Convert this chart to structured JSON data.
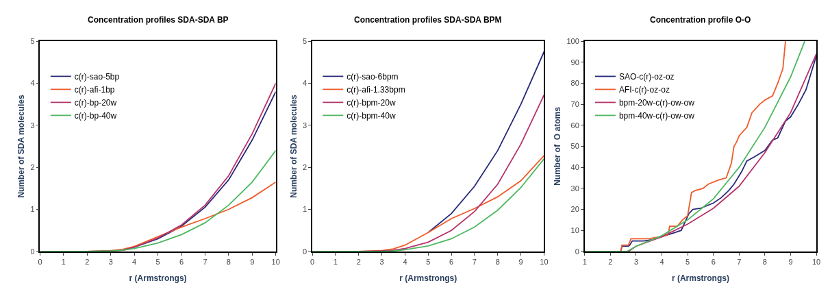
{
  "chart_data": [
    {
      "type": "line",
      "title": "Concentration profiles SDA-SDA BP",
      "xlabel": "r (Armstrongs)",
      "ylabel": "Number of SDA molecules",
      "xlim": [
        0,
        10
      ],
      "xticks": [
        0,
        1,
        2,
        3,
        4,
        5,
        6,
        7,
        8,
        9,
        10
      ],
      "ylim": [
        0,
        5
      ],
      "yticks": [
        0,
        1,
        2,
        3,
        4,
        5
      ],
      "legend": "top left",
      "series": [
        {
          "name": "c(r)-sao-5bp",
          "color": "#28287a",
          "x": [
            3.5,
            4,
            5,
            6,
            7,
            8,
            9,
            10
          ],
          "values": [
            0.03,
            0.1,
            0.3,
            0.6,
            1.05,
            1.7,
            2.65,
            3.8
          ]
        },
        {
          "name": "c(r)-afi-1bp",
          "color": "#f05a28",
          "x": [
            0,
            2,
            3,
            3.5,
            4,
            5,
            6,
            7,
            8,
            9,
            10
          ],
          "values": [
            0,
            0,
            0.02,
            0.05,
            0.12,
            0.35,
            0.58,
            0.78,
            1.0,
            1.28,
            1.65
          ]
        },
        {
          "name": "c(r)-bp-20w",
          "color": "#b5336a",
          "x": [
            0,
            2,
            3,
            3.5,
            4,
            5,
            6,
            7,
            8,
            9,
            10
          ],
          "values": [
            0,
            0,
            0.01,
            0.03,
            0.1,
            0.32,
            0.63,
            1.1,
            1.8,
            2.8,
            4.0
          ]
        },
        {
          "name": "c(r)-bp-40w",
          "color": "#4cb860",
          "x": [
            0,
            2,
            3,
            3.5,
            4,
            5,
            6,
            7,
            8,
            9,
            10
          ],
          "values": [
            0,
            0,
            0.01,
            0.03,
            0.07,
            0.2,
            0.4,
            0.68,
            1.1,
            1.65,
            2.4
          ]
        }
      ]
    },
    {
      "type": "line",
      "title": "Concentration profiles SDA-SDA BPM",
      "xlabel": "r (Armstrongs)",
      "ylabel": "Number of SDA molecules",
      "xlim": [
        0,
        10
      ],
      "xticks": [
        0,
        1,
        2,
        3,
        4,
        5,
        6,
        7,
        8,
        9,
        10
      ],
      "ylim": [
        0,
        5
      ],
      "yticks": [
        0,
        1,
        2,
        3,
        4,
        5
      ],
      "legend": "top left",
      "series": [
        {
          "name": "c(r)-sao-6bpm",
          "color": "#28287a",
          "x": [
            5,
            6,
            7,
            8,
            9,
            10
          ],
          "values": [
            0.45,
            0.9,
            1.55,
            2.4,
            3.5,
            4.75
          ]
        },
        {
          "name": "c(r)-afi-1.33bpm",
          "color": "#f05a28",
          "x": [
            0,
            2,
            3,
            3.5,
            4,
            5,
            6,
            7,
            8,
            9,
            10
          ],
          "values": [
            0,
            0,
            0.02,
            0.06,
            0.15,
            0.45,
            0.78,
            1.02,
            1.3,
            1.68,
            2.28
          ]
        },
        {
          "name": "c(r)-bpm-20w",
          "color": "#b5336a",
          "x": [
            0,
            2,
            3,
            3.5,
            4,
            5,
            6,
            7,
            8,
            9,
            10
          ],
          "values": [
            0,
            0,
            0.01,
            0.03,
            0.07,
            0.22,
            0.5,
            0.95,
            1.6,
            2.55,
            3.72
          ]
        },
        {
          "name": "c(r)-bpm-40w",
          "color": "#4cb860",
          "x": [
            0,
            2,
            3,
            3.5,
            4,
            5,
            6,
            7,
            8,
            9,
            10
          ],
          "values": [
            0,
            0,
            0,
            0.01,
            0.04,
            0.13,
            0.3,
            0.58,
            0.98,
            1.52,
            2.2
          ]
        }
      ]
    },
    {
      "type": "line",
      "title": "Concentration profile O-O",
      "xlabel": "r (Armstrongs)",
      "ylabel": "Number of  O atoms",
      "xlim": [
        1,
        10
      ],
      "xticks": [
        1,
        2,
        3,
        4,
        5,
        6,
        7,
        8,
        9,
        10
      ],
      "ylim": [
        0,
        100
      ],
      "yticks": [
        0,
        10,
        20,
        30,
        40,
        50,
        60,
        70,
        80,
        90,
        100
      ],
      "legend": "top left",
      "series": [
        {
          "name": "SAO-c(r)-oz-oz",
          "color": "#28287a",
          "x": [
            1,
            2.4,
            2.45,
            2.7,
            2.75,
            2.85,
            3.3,
            3.6,
            4,
            4.5,
            4.75,
            4.9,
            5.05,
            5.2,
            5.5,
            6,
            6.3,
            6.6,
            6.8,
            7.1,
            7.3,
            7.6,
            8,
            8.3,
            8.5,
            8.8,
            9,
            9.3,
            9.6,
            10
          ],
          "values": [
            0,
            0,
            2.5,
            2.5,
            3,
            5,
            5,
            5.5,
            7,
            9,
            10,
            14,
            18,
            20,
            20.5,
            23,
            25.5,
            29,
            32,
            38,
            43,
            45,
            48,
            53,
            54,
            62,
            64,
            70,
            77,
            93
          ]
        },
        {
          "name": "AFI-c(r)-oz-oz",
          "color": "#f05a28",
          "x": [
            1,
            2.4,
            2.45,
            2.7,
            2.8,
            3.5,
            3.7,
            4,
            4.25,
            4.3,
            4.6,
            4.8,
            5,
            5.15,
            5.3,
            5.6,
            5.8,
            6.2,
            6.5,
            6.7,
            6.8,
            6.9,
            7.0,
            7.3,
            7.5,
            7.8,
            8,
            8.3,
            8.5,
            8.7,
            8.8
          ],
          "values": [
            0,
            0,
            3,
            3,
            6,
            6,
            6.5,
            7,
            8,
            12,
            12,
            15,
            17,
            28,
            29,
            30,
            32,
            34,
            35,
            42,
            50,
            52,
            55,
            59,
            66,
            70,
            72,
            74,
            80,
            87,
            100
          ]
        },
        {
          "name": "bpm-20w-c(r)-ow-ow",
          "color": "#b5336a",
          "x": [
            1,
            2.7,
            3,
            4,
            5,
            6,
            7,
            8,
            9,
            10
          ],
          "values": [
            0,
            0,
            2.5,
            7,
            13,
            20.5,
            31,
            47,
            66,
            94
          ]
        },
        {
          "name": "bpm-40w-c(r)-ow-ow",
          "color": "#4cb860",
          "x": [
            1,
            2.65,
            3,
            4,
            5,
            6,
            7,
            8,
            9,
            9.55
          ],
          "values": [
            0,
            0,
            2.5,
            7.5,
            15,
            25,
            40,
            59,
            83,
            100
          ]
        }
      ]
    }
  ]
}
